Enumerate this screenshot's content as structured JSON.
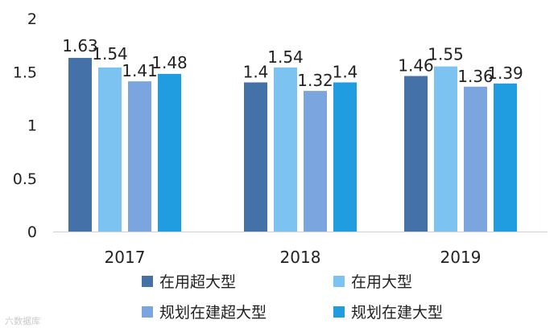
{
  "chart_data": {
    "type": "bar",
    "title": "",
    "xlabel": "",
    "ylabel": "",
    "ylim": [
      0,
      2
    ],
    "yticks": [
      0,
      0.5,
      1,
      1.5,
      2
    ],
    "ytick_labels": [
      "0",
      "0.5",
      "1",
      "1.5",
      "2"
    ],
    "categories": [
      "2017",
      "2018",
      "2019"
    ],
    "series": [
      {
        "name": "在用超大型",
        "color": "#4472a8",
        "values": [
          1.63,
          1.4,
          1.46
        ],
        "labels": [
          "1.63",
          "1.4",
          "1.46"
        ]
      },
      {
        "name": "在用大型",
        "color": "#7cc3f2",
        "values": [
          1.54,
          1.54,
          1.55
        ],
        "labels": [
          "1.54",
          "1.54",
          "1.55"
        ]
      },
      {
        "name": "规划在建超大型",
        "color": "#7ba5de",
        "values": [
          1.41,
          1.32,
          1.36
        ],
        "labels": [
          "1.41",
          "1.32",
          "1.36"
        ]
      },
      {
        "name": "规划在建大型",
        "color": "#1f9de0",
        "values": [
          1.48,
          1.4,
          1.39
        ],
        "labels": [
          "1.48",
          "1.4",
          "1.39"
        ]
      }
    ],
    "legend_position": "bottom",
    "grid": false
  },
  "watermark": "六数据库"
}
